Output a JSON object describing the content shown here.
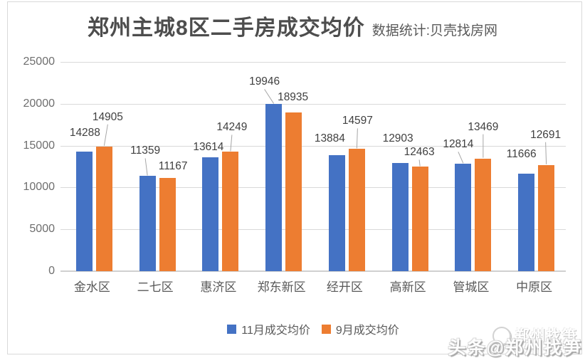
{
  "chart_data": {
    "type": "bar",
    "title": "郑州主城8区二手房成交均价",
    "subtitle": "数据统计:贝壳找房网",
    "categories": [
      "金水区",
      "二七区",
      "惠济区",
      "郑东新区",
      "经开区",
      "高新区",
      "管城区",
      "中原区"
    ],
    "series": [
      {
        "name": "11月成交均价",
        "color": "#4472c4",
        "values": [
          14288,
          11359,
          13614,
          19946,
          13884,
          12903,
          12814,
          11666
        ]
      },
      {
        "name": "9月成交均价",
        "color": "#ed7d31",
        "values": [
          14905,
          11167,
          14249,
          18935,
          14597,
          12463,
          13469,
          12691
        ]
      }
    ],
    "ylabel": "",
    "xlabel": "",
    "ylim": [
      0,
      25000
    ],
    "yticks": [
      0,
      5000,
      10000,
      15000,
      20000,
      25000
    ],
    "grid": true,
    "legend_position": "bottom",
    "data_labels": true
  },
  "watermark": {
    "text": "头条@郑州找笋",
    "ghost_text": "郑州找笋"
  }
}
